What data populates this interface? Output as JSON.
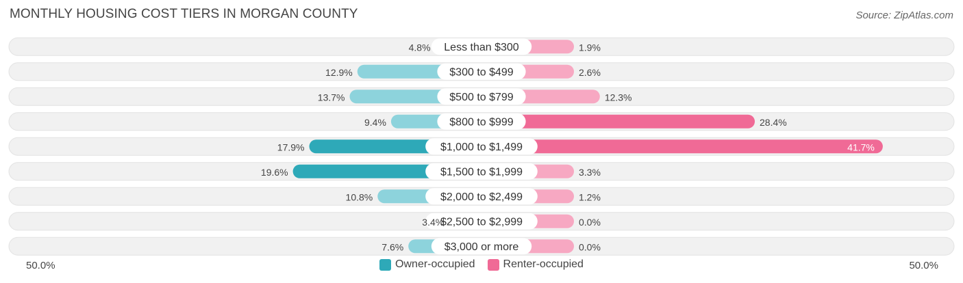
{
  "header": {
    "title": "MONTHLY HOUSING COST TIERS IN MORGAN COUNTY",
    "source": "Source: ZipAtlas.com"
  },
  "colors": {
    "owner": "#2ea9b8",
    "owner_light": "#8dd3dc",
    "renter": "#f06a96",
    "renter_light": "#f7a8c2",
    "track": "#f1f1f1",
    "track_border": "#e2e2e2"
  },
  "chart_data": {
    "type": "bar",
    "orientation": "horizontal-diverging",
    "title": "MONTHLY HOUSING COST TIERS IN MORGAN COUNTY",
    "categories": [
      "Less than $300",
      "$300 to $499",
      "$500 to $799",
      "$800 to $999",
      "$1,000 to $1,499",
      "$1,500 to $1,999",
      "$2,000 to $2,499",
      "$2,500 to $2,999",
      "$3,000 or more"
    ],
    "series": [
      {
        "name": "Owner-occupied",
        "values": [
          4.8,
          12.9,
          13.7,
          9.4,
          17.9,
          19.6,
          10.8,
          3.4,
          7.6
        ]
      },
      {
        "name": "Renter-occupied",
        "values": [
          1.9,
          2.6,
          12.3,
          28.4,
          41.7,
          3.3,
          1.2,
          0.0,
          0.0
        ]
      }
    ],
    "value_labels": {
      "owner": [
        "4.8%",
        "12.9%",
        "13.7%",
        "9.4%",
        "17.9%",
        "19.6%",
        "10.8%",
        "3.4%",
        "7.6%"
      ],
      "renter": [
        "1.9%",
        "2.6%",
        "12.3%",
        "28.4%",
        "41.7%",
        "3.3%",
        "1.2%",
        "0.0%",
        "0.0%"
      ]
    },
    "xlim": [
      -50,
      50
    ],
    "axis_min_label": "50.0%",
    "axis_max_label": "50.0%",
    "legend": [
      "Owner-occupied",
      "Renter-occupied"
    ],
    "legend_position": "bottom-center"
  }
}
